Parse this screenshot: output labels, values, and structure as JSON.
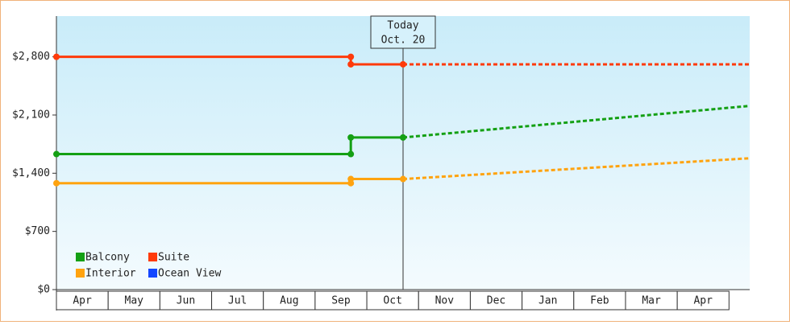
{
  "chart_data": {
    "type": "line",
    "xlim": [
      0,
      13.4
    ],
    "ylim": [
      0,
      3290
    ],
    "xticks": [
      {
        "value": 0.5,
        "label": "Apr"
      },
      {
        "value": 1.5,
        "label": "May"
      },
      {
        "value": 2.5,
        "label": "Jun"
      },
      {
        "value": 3.5,
        "label": "Jul"
      },
      {
        "value": 4.5,
        "label": "Aug"
      },
      {
        "value": 5.5,
        "label": "Sep"
      },
      {
        "value": 6.5,
        "label": "Oct"
      },
      {
        "value": 7.5,
        "label": "Nov"
      },
      {
        "value": 8.5,
        "label": "Dec"
      },
      {
        "value": 9.5,
        "label": "Jan"
      },
      {
        "value": 10.5,
        "label": "Feb"
      },
      {
        "value": 11.5,
        "label": "Mar"
      },
      {
        "value": 12.5,
        "label": "Apr"
      }
    ],
    "yticks": [
      {
        "value": 0,
        "label": "$0"
      },
      {
        "value": 700,
        "label": "$700"
      },
      {
        "value": 1400,
        "label": "$1,400"
      },
      {
        "value": 2100,
        "label": "$2,100"
      },
      {
        "value": 2800,
        "label": "$2,800"
      }
    ],
    "annotation": {
      "x": 6.7,
      "lines": [
        "Today",
        "Oct. 20"
      ]
    },
    "legend": "lower left",
    "series": [
      {
        "name": "Balcony",
        "color": "#14a014",
        "x": [
          0,
          5.69,
          5.69,
          6.7
        ],
        "values": [
          1630,
          1630,
          1830,
          1830
        ],
        "projection": {
          "x": [
            6.7,
            13.4
          ],
          "values": [
            1830,
            2210
          ]
        }
      },
      {
        "name": "Suite",
        "color": "#ff3a0a",
        "x": [
          0,
          5.69,
          5.69,
          6.7
        ],
        "values": [
          2800,
          2800,
          2710,
          2710
        ],
        "projection": {
          "x": [
            6.7,
            13.4
          ],
          "values": [
            2710,
            2710
          ]
        }
      },
      {
        "name": "Interior",
        "color": "#ffa30f",
        "x": [
          0,
          5.69,
          5.69,
          6.7
        ],
        "values": [
          1280,
          1280,
          1330,
          1330
        ],
        "projection": {
          "x": [
            6.7,
            13.4
          ],
          "values": [
            1330,
            1580
          ]
        }
      },
      {
        "name": "Ocean View",
        "color": "#1446ff",
        "x": [],
        "values": []
      }
    ]
  }
}
